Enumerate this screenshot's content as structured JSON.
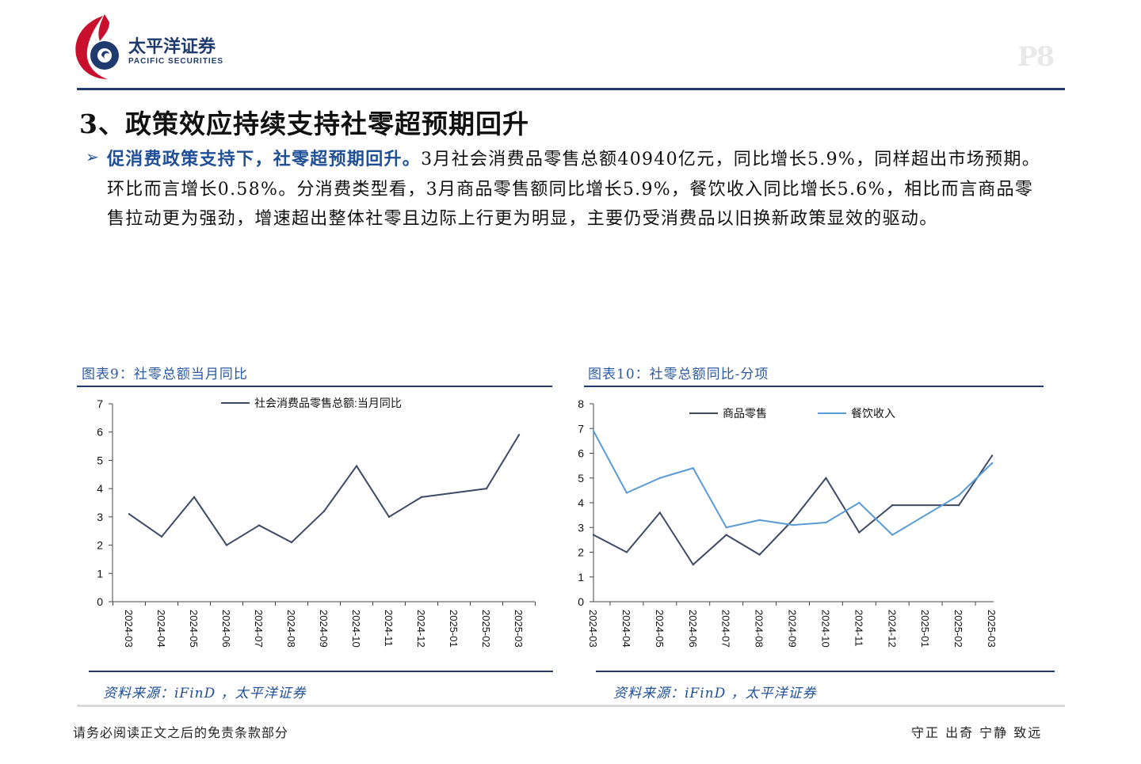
{
  "header": {
    "company_cn": "太平洋证券",
    "company_en": "PACIFIC SECURITIES",
    "page_number": "P8"
  },
  "section": {
    "title": "3、政策效应持续支持社零超预期回升"
  },
  "paragraph": {
    "bullet": "➢",
    "highlight": "促消费政策支持下，社零超预期回升。",
    "body": "3月社会消费品零售总额40940亿元，同比增长5.9%，同样超出市场预期。环比而言增长0.58%。分消费类型看，3月商品零售额同比增长5.9%，餐饮收入同比增长5.6%，相比而言商品零售拉动更为强劲，增速超出整体社零且边际上行更为明显，主要仍受消费品以旧换新政策显效的驱动。"
  },
  "figures": [
    {
      "title": "图表9：社零总额当月同比",
      "source": "资料来源：iFinD ，太平洋证券"
    },
    {
      "title": "图表10：社零总额同比-分项",
      "source": "资料来源：iFinD ，太平洋证券"
    }
  ],
  "chart_data": [
    {
      "type": "line",
      "title": "",
      "xlabel": "",
      "ylabel": "",
      "ylim": [
        0,
        7
      ],
      "yticks": [
        0,
        1,
        2,
        3,
        4,
        5,
        6,
        7
      ],
      "grid": false,
      "legend_position": "top-right",
      "categories": [
        "2024-03",
        "2024-04",
        "2024-05",
        "2024-06",
        "2024-07",
        "2024-08",
        "2024-09",
        "2024-10",
        "2024-11",
        "2024-12",
        "2025-01",
        "2025-02",
        "2025-03"
      ],
      "series": [
        {
          "name": "社会消费品零售总额:当月同比",
          "color": "#3c4a66",
          "values": [
            3.1,
            2.3,
            3.7,
            2.0,
            2.7,
            2.1,
            3.2,
            4.8,
            3.0,
            3.7,
            null,
            4.0,
            5.9
          ]
        }
      ]
    },
    {
      "type": "line",
      "title": "",
      "xlabel": "",
      "ylabel": "",
      "ylim": [
        0,
        8
      ],
      "yticks": [
        0,
        1,
        2,
        3,
        4,
        5,
        6,
        7,
        8
      ],
      "grid": false,
      "legend_position": "top",
      "categories": [
        "2024-03",
        "2024-04",
        "2024-05",
        "2024-06",
        "2024-07",
        "2024-08",
        "2024-09",
        "2024-10",
        "2024-11",
        "2024-12",
        "2025-01",
        "2025-02",
        "2025-03"
      ],
      "series": [
        {
          "name": "商品零售",
          "color": "#3c4a66",
          "values": [
            2.7,
            2.0,
            3.6,
            1.5,
            2.7,
            1.9,
            3.3,
            5.0,
            2.8,
            3.9,
            null,
            3.9,
            5.9
          ]
        },
        {
          "name": "餐饮收入",
          "color": "#5b9bd5",
          "values": [
            6.9,
            4.4,
            5.0,
            5.4,
            3.0,
            3.3,
            3.1,
            3.2,
            4.0,
            2.7,
            null,
            4.3,
            5.6
          ]
        }
      ]
    }
  ],
  "footer": {
    "disclaimer": "请务必阅读正文之后的免责条款部分",
    "motto": "守正 出奇 宁静 致远"
  },
  "colors": {
    "brand_red": "#c8102e",
    "brand_navy": "#1f3a6e",
    "accent_blue": "#1f4f96",
    "series_dark": "#3c4a66",
    "series_light": "#5b9bd5"
  }
}
